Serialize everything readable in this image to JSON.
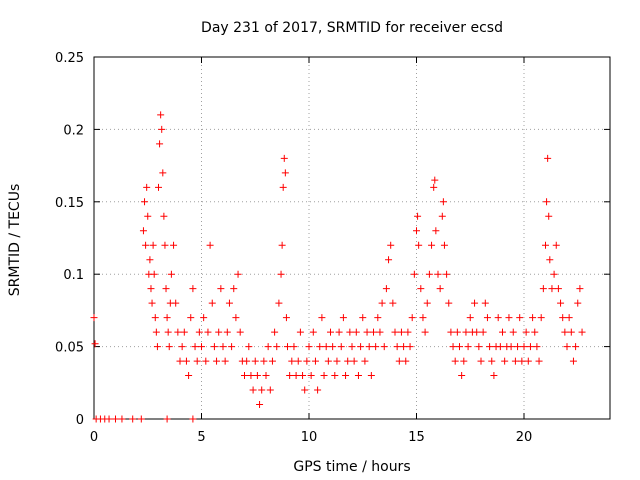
{
  "chart_data": {
    "type": "scatter",
    "title": "Day 231 of 2017, SRMTID for receiver ecsd",
    "xlabel": "GPS time / hours",
    "ylabel": "SRMTID / TECUs",
    "xlim": [
      0,
      24
    ],
    "ylim": [
      0,
      0.25
    ],
    "xticks": [
      0,
      5,
      10,
      15,
      20
    ],
    "xtick_labels": [
      "0",
      "5",
      "10",
      "15",
      "20"
    ],
    "yticks": [
      0,
      0.05,
      0.1,
      0.15,
      0.2,
      0.25
    ],
    "ytick_labels": [
      "0",
      "0.05",
      "0.1",
      "0.15",
      "0.2",
      "0.25"
    ],
    "grid": true,
    "marker": "plus",
    "color": "#ff0000",
    "series": [
      {
        "name": "SRMTID",
        "points": [
          [
            0.0,
            0.07
          ],
          [
            0.05,
            0.052
          ],
          [
            0.1,
            0.0
          ],
          [
            0.3,
            0.0
          ],
          [
            0.5,
            0.0
          ],
          [
            0.7,
            0.0
          ],
          [
            1.0,
            0.0
          ],
          [
            1.3,
            0.0
          ],
          [
            1.8,
            0.0
          ],
          [
            2.2,
            0.0
          ],
          [
            3.4,
            0.0
          ],
          [
            4.6,
            0.0
          ],
          [
            2.3,
            0.13
          ],
          [
            2.35,
            0.15
          ],
          [
            2.4,
            0.12
          ],
          [
            2.45,
            0.16
          ],
          [
            2.5,
            0.14
          ],
          [
            2.55,
            0.1
          ],
          [
            2.6,
            0.11
          ],
          [
            2.65,
            0.09
          ],
          [
            2.7,
            0.08
          ],
          [
            2.75,
            0.12
          ],
          [
            2.8,
            0.1
          ],
          [
            2.85,
            0.07
          ],
          [
            2.9,
            0.06
          ],
          [
            2.95,
            0.05
          ],
          [
            3.0,
            0.16
          ],
          [
            3.05,
            0.19
          ],
          [
            3.1,
            0.21
          ],
          [
            3.15,
            0.2
          ],
          [
            3.2,
            0.17
          ],
          [
            3.25,
            0.14
          ],
          [
            3.3,
            0.12
          ],
          [
            3.35,
            0.09
          ],
          [
            3.4,
            0.07
          ],
          [
            3.45,
            0.06
          ],
          [
            3.5,
            0.05
          ],
          [
            3.55,
            0.08
          ],
          [
            3.6,
            0.1
          ],
          [
            3.7,
            0.12
          ],
          [
            3.8,
            0.08
          ],
          [
            3.9,
            0.06
          ],
          [
            4.0,
            0.04
          ],
          [
            4.1,
            0.05
          ],
          [
            4.2,
            0.06
          ],
          [
            4.3,
            0.04
          ],
          [
            4.4,
            0.03
          ],
          [
            4.5,
            0.07
          ],
          [
            4.6,
            0.09
          ],
          [
            4.7,
            0.05
          ],
          [
            4.8,
            0.04
          ],
          [
            4.9,
            0.06
          ],
          [
            5.0,
            0.05
          ],
          [
            5.1,
            0.07
          ],
          [
            5.2,
            0.04
          ],
          [
            5.3,
            0.06
          ],
          [
            5.4,
            0.12
          ],
          [
            5.5,
            0.08
          ],
          [
            5.6,
            0.05
          ],
          [
            5.7,
            0.04
          ],
          [
            5.8,
            0.06
          ],
          [
            5.9,
            0.09
          ],
          [
            6.0,
            0.05
          ],
          [
            6.1,
            0.04
          ],
          [
            6.2,
            0.06
          ],
          [
            6.3,
            0.08
          ],
          [
            6.4,
            0.05
          ],
          [
            6.5,
            0.09
          ],
          [
            6.6,
            0.07
          ],
          [
            6.7,
            0.1
          ],
          [
            6.8,
            0.06
          ],
          [
            6.9,
            0.04
          ],
          [
            7.0,
            0.03
          ],
          [
            7.1,
            0.04
          ],
          [
            7.2,
            0.05
          ],
          [
            7.3,
            0.03
          ],
          [
            7.4,
            0.02
          ],
          [
            7.5,
            0.04
          ],
          [
            7.6,
            0.03
          ],
          [
            7.7,
            0.01
          ],
          [
            7.8,
            0.02
          ],
          [
            7.9,
            0.04
          ],
          [
            8.0,
            0.03
          ],
          [
            8.1,
            0.05
          ],
          [
            8.2,
            0.02
          ],
          [
            8.3,
            0.04
          ],
          [
            8.4,
            0.06
          ],
          [
            8.5,
            0.05
          ],
          [
            8.6,
            0.08
          ],
          [
            8.7,
            0.1
          ],
          [
            8.75,
            0.12
          ],
          [
            8.8,
            0.16
          ],
          [
            8.85,
            0.18
          ],
          [
            8.9,
            0.17
          ],
          [
            8.95,
            0.07
          ],
          [
            9.0,
            0.05
          ],
          [
            9.1,
            0.03
          ],
          [
            9.2,
            0.04
          ],
          [
            9.3,
            0.05
          ],
          [
            9.4,
            0.03
          ],
          [
            9.5,
            0.04
          ],
          [
            9.6,
            0.06
          ],
          [
            9.7,
            0.03
          ],
          [
            9.8,
            0.02
          ],
          [
            9.9,
            0.04
          ],
          [
            10.0,
            0.05
          ],
          [
            10.1,
            0.03
          ],
          [
            10.2,
            0.06
          ],
          [
            10.3,
            0.04
          ],
          [
            10.4,
            0.02
          ],
          [
            10.5,
            0.05
          ],
          [
            10.6,
            0.07
          ],
          [
            10.7,
            0.03
          ],
          [
            10.8,
            0.05
          ],
          [
            10.9,
            0.04
          ],
          [
            11.0,
            0.06
          ],
          [
            11.1,
            0.05
          ],
          [
            11.2,
            0.03
          ],
          [
            11.3,
            0.04
          ],
          [
            11.4,
            0.06
          ],
          [
            11.5,
            0.05
          ],
          [
            11.6,
            0.07
          ],
          [
            11.7,
            0.03
          ],
          [
            11.8,
            0.04
          ],
          [
            11.9,
            0.06
          ],
          [
            12.0,
            0.05
          ],
          [
            12.1,
            0.04
          ],
          [
            12.2,
            0.06
          ],
          [
            12.3,
            0.03
          ],
          [
            12.4,
            0.05
          ],
          [
            12.5,
            0.07
          ],
          [
            12.6,
            0.04
          ],
          [
            12.7,
            0.06
          ],
          [
            12.8,
            0.05
          ],
          [
            12.9,
            0.03
          ],
          [
            13.0,
            0.06
          ],
          [
            13.1,
            0.05
          ],
          [
            13.2,
            0.07
          ],
          [
            13.3,
            0.06
          ],
          [
            13.4,
            0.08
          ],
          [
            13.5,
            0.05
          ],
          [
            13.6,
            0.09
          ],
          [
            13.7,
            0.11
          ],
          [
            13.8,
            0.12
          ],
          [
            13.9,
            0.08
          ],
          [
            14.0,
            0.06
          ],
          [
            14.1,
            0.05
          ],
          [
            14.2,
            0.04
          ],
          [
            14.3,
            0.06
          ],
          [
            14.4,
            0.05
          ],
          [
            14.5,
            0.04
          ],
          [
            14.6,
            0.06
          ],
          [
            14.7,
            0.05
          ],
          [
            14.8,
            0.07
          ],
          [
            14.9,
            0.1
          ],
          [
            15.0,
            0.13
          ],
          [
            15.05,
            0.14
          ],
          [
            15.1,
            0.12
          ],
          [
            15.2,
            0.09
          ],
          [
            15.3,
            0.07
          ],
          [
            15.4,
            0.06
          ],
          [
            15.5,
            0.08
          ],
          [
            15.6,
            0.1
          ],
          [
            15.7,
            0.12
          ],
          [
            15.8,
            0.16
          ],
          [
            15.85,
            0.165
          ],
          [
            15.9,
            0.13
          ],
          [
            16.0,
            0.1
          ],
          [
            16.1,
            0.09
          ],
          [
            16.2,
            0.14
          ],
          [
            16.25,
            0.15
          ],
          [
            16.3,
            0.12
          ],
          [
            16.4,
            0.1
          ],
          [
            16.5,
            0.08
          ],
          [
            16.6,
            0.06
          ],
          [
            16.7,
            0.05
          ],
          [
            16.8,
            0.04
          ],
          [
            16.9,
            0.06
          ],
          [
            17.0,
            0.05
          ],
          [
            17.1,
            0.03
          ],
          [
            17.2,
            0.04
          ],
          [
            17.3,
            0.06
          ],
          [
            17.4,
            0.05
          ],
          [
            17.5,
            0.07
          ],
          [
            17.6,
            0.06
          ],
          [
            17.7,
            0.08
          ],
          [
            17.8,
            0.06
          ],
          [
            17.9,
            0.05
          ],
          [
            18.0,
            0.04
          ],
          [
            18.1,
            0.06
          ],
          [
            18.2,
            0.08
          ],
          [
            18.3,
            0.07
          ],
          [
            18.4,
            0.05
          ],
          [
            18.5,
            0.04
          ],
          [
            18.6,
            0.03
          ],
          [
            18.7,
            0.05
          ],
          [
            18.8,
            0.07
          ],
          [
            18.9,
            0.05
          ],
          [
            19.0,
            0.06
          ],
          [
            19.1,
            0.04
          ],
          [
            19.2,
            0.05
          ],
          [
            19.3,
            0.07
          ],
          [
            19.4,
            0.05
          ],
          [
            19.5,
            0.06
          ],
          [
            19.6,
            0.04
          ],
          [
            19.7,
            0.05
          ],
          [
            19.8,
            0.07
          ],
          [
            19.9,
            0.04
          ],
          [
            20.0,
            0.05
          ],
          [
            20.1,
            0.06
          ],
          [
            20.2,
            0.04
          ],
          [
            20.3,
            0.05
          ],
          [
            20.4,
            0.07
          ],
          [
            20.5,
            0.06
          ],
          [
            20.6,
            0.05
          ],
          [
            20.7,
            0.04
          ],
          [
            20.8,
            0.07
          ],
          [
            20.9,
            0.09
          ],
          [
            21.0,
            0.12
          ],
          [
            21.05,
            0.15
          ],
          [
            21.1,
            0.18
          ],
          [
            21.15,
            0.14
          ],
          [
            21.2,
            0.11
          ],
          [
            21.3,
            0.09
          ],
          [
            21.4,
            0.1
          ],
          [
            21.5,
            0.12
          ],
          [
            21.6,
            0.09
          ],
          [
            21.7,
            0.08
          ],
          [
            21.8,
            0.07
          ],
          [
            21.9,
            0.06
          ],
          [
            22.0,
            0.05
          ],
          [
            22.1,
            0.07
          ],
          [
            22.2,
            0.06
          ],
          [
            22.3,
            0.04
          ],
          [
            22.4,
            0.05
          ],
          [
            22.5,
            0.08
          ],
          [
            22.6,
            0.09
          ],
          [
            22.7,
            0.06
          ]
        ]
      }
    ]
  }
}
